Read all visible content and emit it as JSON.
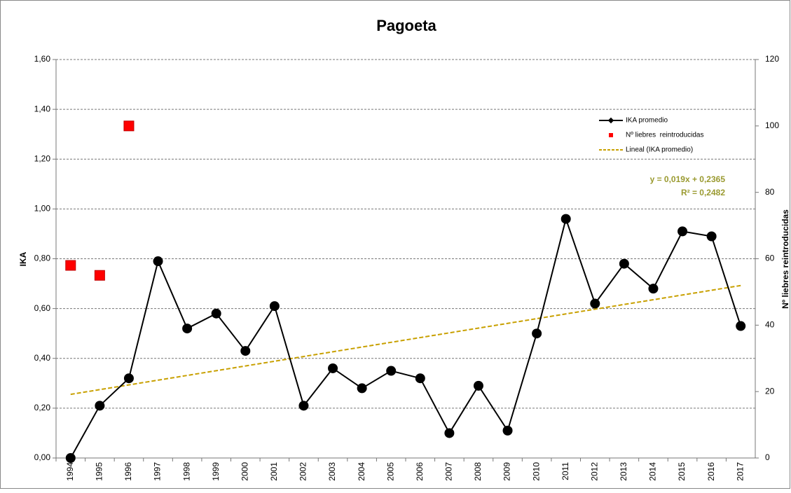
{
  "chart_data": {
    "type": "line",
    "title": "Pagoeta",
    "ylabel": "IKA",
    "y2label": "Nº liebres reintroducidas",
    "categories": [
      "1994",
      "1995",
      "1996",
      "1997",
      "1998",
      "1999",
      "2000",
      "2001",
      "2002",
      "2003",
      "2004",
      "2005",
      "2006",
      "2007",
      "2008",
      "2009",
      "2010",
      "2011",
      "2012",
      "2013",
      "2014",
      "2015",
      "2016",
      "2017"
    ],
    "series": [
      {
        "name": "IKA promedio",
        "color": "#000000",
        "values": [
          0.0,
          0.21,
          0.32,
          0.79,
          0.52,
          0.58,
          0.43,
          0.61,
          0.21,
          0.36,
          0.28,
          0.35,
          0.32,
          0.1,
          0.29,
          0.11,
          0.5,
          0.96,
          0.62,
          0.78,
          0.68,
          0.91,
          0.89,
          0.53
        ]
      },
      {
        "name": "Nº liebres  reintroducidas",
        "color": "#ff0000",
        "axis": "y2",
        "values": [
          58,
          55,
          100,
          null,
          null,
          null,
          null,
          null,
          null,
          null,
          null,
          null,
          null,
          null,
          null,
          null,
          null,
          null,
          null,
          null,
          null,
          null,
          null,
          null
        ]
      },
      {
        "name": "Lineal (IKA promedio)",
        "color": "#c8a000",
        "values": [
          0.2555,
          0.2745,
          0.2935,
          0.3125,
          0.3315,
          0.3505,
          0.3695,
          0.3885,
          0.4075,
          0.4265,
          0.4455,
          0.4645,
          0.4835,
          0.5025,
          0.5215,
          0.5405,
          0.5595,
          0.5785,
          0.5975,
          0.6165,
          0.6355,
          0.6545,
          0.6735,
          0.6925
        ]
      }
    ],
    "annotations": [
      "y = 0,019x + 0,2365",
      "R² = 0,2482"
    ],
    "ylim": [
      0,
      1.6
    ],
    "yticks": [
      {
        "value": 0,
        "label": "0,00"
      },
      {
        "value": 0.2,
        "label": "0,20"
      },
      {
        "value": 0.4,
        "label": "0,40"
      },
      {
        "value": 0.6,
        "label": "0,60"
      },
      {
        "value": 0.8,
        "label": "0,80"
      },
      {
        "value": 1.0,
        "label": "1,00"
      },
      {
        "value": 1.2,
        "label": "1,20"
      },
      {
        "value": 1.4,
        "label": "1,40"
      },
      {
        "value": 1.6,
        "label": "1,60"
      }
    ],
    "y2lim": [
      0,
      120
    ],
    "y2ticks": [
      0,
      20,
      40,
      60,
      80,
      100,
      120
    ],
    "grid": true,
    "legend": "upper right"
  }
}
